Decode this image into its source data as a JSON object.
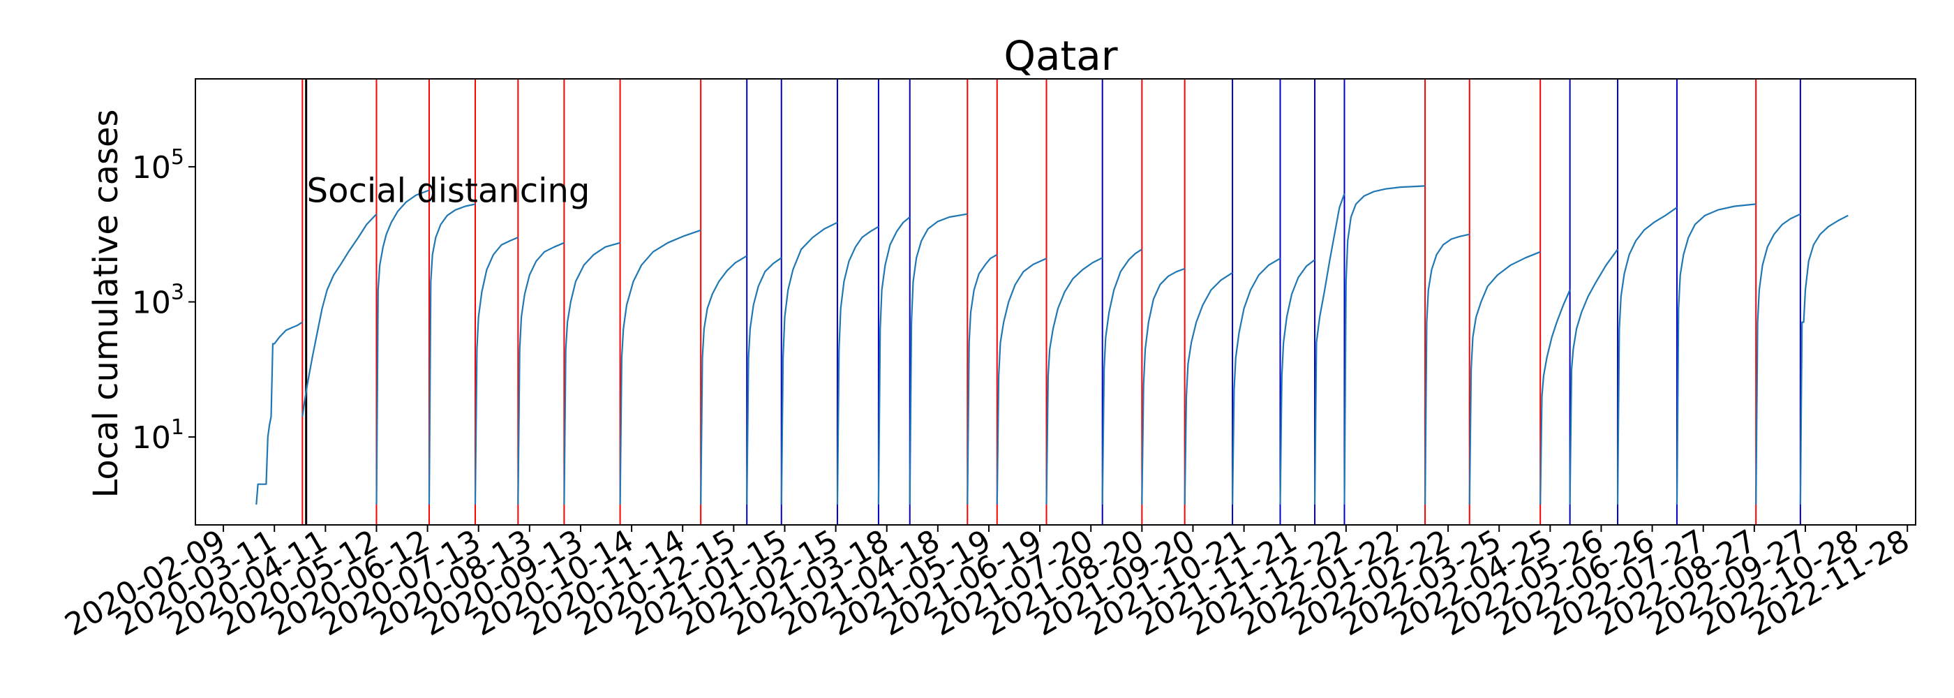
{
  "chart_data": {
    "type": "line",
    "title": "Qatar",
    "xlabel": "",
    "ylabel": "Local cumulative cases",
    "y_scale": "log",
    "ylim": [
      0.5,
      2000000
    ],
    "xlim": [
      "2020-01-23",
      "2022-12-03"
    ],
    "grid": false,
    "yticks": [
      {
        "value": 10,
        "base": "10",
        "exp": "1"
      },
      {
        "value": 1000,
        "base": "10",
        "exp": "3"
      },
      {
        "value": 100000,
        "base": "10",
        "exp": "5"
      }
    ],
    "xtick_labels": [
      "2020-02-09",
      "2020-03-11",
      "2020-04-11",
      "2020-05-12",
      "2020-06-12",
      "2020-07-13",
      "2020-08-13",
      "2020-09-13",
      "2020-10-14",
      "2020-11-14",
      "2020-12-15",
      "2021-01-15",
      "2021-02-15",
      "2021-03-18",
      "2021-04-18",
      "2021-05-19",
      "2021-06-19",
      "2021-07-20",
      "2021-08-20",
      "2021-09-20",
      "2021-10-21",
      "2021-11-21",
      "2021-12-22",
      "2022-01-22",
      "2022-02-22",
      "2022-03-25",
      "2022-04-25",
      "2022-05-26",
      "2022-06-26",
      "2022-07-27",
      "2022-08-27",
      "2022-09-27",
      "2022-10-28",
      "2022-11-28"
    ],
    "annotation": {
      "text": "Social distancing",
      "date": "2020-03-29",
      "value": 40000
    },
    "intervention_line": {
      "date": "2020-03-29",
      "color": "#000000"
    },
    "red_lines": [
      "2020-03-28",
      "2020-05-12",
      "2020-06-13",
      "2020-07-11",
      "2020-08-06",
      "2020-09-03",
      "2020-10-07",
      "2020-11-25",
      "2021-05-06",
      "2021-05-24",
      "2021-06-23",
      "2021-08-20",
      "2021-09-15",
      "2022-02-08",
      "2022-03-07",
      "2022-04-19",
      "2022-08-28"
    ],
    "blue_lines": [
      "2020-12-23",
      "2021-01-13",
      "2021-02-16",
      "2021-03-13",
      "2021-04-01",
      "2021-07-27",
      "2021-10-14",
      "2021-11-12",
      "2021-12-03",
      "2021-12-21",
      "2022-05-07",
      "2022-06-05",
      "2022-07-11",
      "2022-09-24"
    ],
    "series_color": "#1f77b4",
    "series": [
      {
        "x": [
          "2020-02-29",
          "2020-03-01",
          "2020-03-03",
          "2020-03-04",
          "2020-03-06",
          "2020-03-07",
          "2020-03-08",
          "2020-03-09",
          "2020-03-10",
          "2020-03-11",
          "2020-03-14",
          "2020-03-18",
          "2020-03-22",
          "2020-03-25",
          "2020-03-28"
        ],
        "values": [
          1,
          2,
          2,
          2,
          2,
          10,
          15,
          20,
          240,
          240,
          300,
          380,
          420,
          450,
          500
        ]
      },
      {
        "x": [
          "2020-03-28",
          "2020-03-29",
          "2020-03-31",
          "2020-04-03",
          "2020-04-06",
          "2020-04-09",
          "2020-04-12",
          "2020-04-16",
          "2020-04-20",
          "2020-04-25",
          "2020-05-01",
          "2020-05-06",
          "2020-05-12"
        ],
        "values": [
          20,
          30,
          60,
          150,
          350,
          800,
          1500,
          2500,
          3500,
          5500,
          9000,
          14000,
          20000
        ]
      },
      {
        "x": [
          "2020-05-12",
          "2020-05-13",
          "2020-05-14",
          "2020-05-16",
          "2020-05-18",
          "2020-05-21",
          "2020-05-25",
          "2020-05-30",
          "2020-06-05",
          "2020-06-13"
        ],
        "values": [
          1,
          1500,
          3500,
          6500,
          10000,
          15000,
          22000,
          30000,
          38000,
          45000
        ]
      },
      {
        "x": [
          "2020-06-13",
          "2020-06-14",
          "2020-06-15",
          "2020-06-17",
          "2020-06-20",
          "2020-06-24",
          "2020-06-29",
          "2020-07-05",
          "2020-07-11"
        ],
        "values": [
          1,
          2000,
          5000,
          9000,
          14000,
          19000,
          23000,
          26000,
          28000
        ]
      },
      {
        "x": [
          "2020-07-11",
          "2020-07-12",
          "2020-07-13",
          "2020-07-15",
          "2020-07-18",
          "2020-07-22",
          "2020-07-27",
          "2020-08-01",
          "2020-08-06"
        ],
        "values": [
          1,
          200,
          600,
          1400,
          3000,
          5000,
          7000,
          8000,
          9000
        ]
      },
      {
        "x": [
          "2020-08-06",
          "2020-08-07",
          "2020-08-08",
          "2020-08-10",
          "2020-08-13",
          "2020-08-17",
          "2020-08-22",
          "2020-08-28",
          "2020-09-03"
        ],
        "values": [
          1,
          200,
          600,
          1300,
          2500,
          4000,
          5500,
          6500,
          7500
        ]
      },
      {
        "x": [
          "2020-09-03",
          "2020-09-04",
          "2020-09-05",
          "2020-09-07",
          "2020-09-10",
          "2020-09-15",
          "2020-09-21",
          "2020-09-28",
          "2020-10-07"
        ],
        "values": [
          1,
          200,
          500,
          1000,
          2000,
          3500,
          5000,
          6500,
          7500
        ]
      },
      {
        "x": [
          "2020-10-07",
          "2020-10-08",
          "2020-10-09",
          "2020-10-11",
          "2020-10-15",
          "2020-10-20",
          "2020-10-27",
          "2020-11-05",
          "2020-11-15",
          "2020-11-25"
        ],
        "values": [
          1,
          150,
          400,
          900,
          2000,
          3500,
          5500,
          7500,
          9500,
          11500
        ]
      },
      {
        "x": [
          "2020-11-25",
          "2020-11-26",
          "2020-11-27",
          "2020-11-29",
          "2020-12-02",
          "2020-12-06",
          "2020-12-11",
          "2020-12-16",
          "2020-12-23"
        ],
        "values": [
          1,
          150,
          400,
          800,
          1300,
          2000,
          2900,
          3800,
          4800
        ]
      },
      {
        "x": [
          "2020-12-23",
          "2020-12-24",
          "2020-12-25",
          "2020-12-27",
          "2020-12-30",
          "2021-01-03",
          "2021-01-08",
          "2021-01-13"
        ],
        "values": [
          1,
          150,
          400,
          900,
          1700,
          2800,
          3700,
          4500
        ]
      },
      {
        "x": [
          "2021-01-13",
          "2021-01-14",
          "2021-01-15",
          "2021-01-17",
          "2021-01-20",
          "2021-01-25",
          "2021-02-01",
          "2021-02-08",
          "2021-02-16"
        ],
        "values": [
          1,
          150,
          600,
          1500,
          3000,
          6000,
          9000,
          12000,
          15000
        ]
      },
      {
        "x": [
          "2021-02-16",
          "2021-02-17",
          "2021-02-18",
          "2021-02-20",
          "2021-02-23",
          "2021-02-27",
          "2021-03-03",
          "2021-03-08",
          "2021-03-13"
        ],
        "values": [
          1,
          200,
          800,
          2000,
          4000,
          6500,
          9000,
          11000,
          13000
        ]
      },
      {
        "x": [
          "2021-03-13",
          "2021-03-14",
          "2021-03-15",
          "2021-03-17",
          "2021-03-20",
          "2021-03-24",
          "2021-03-28",
          "2021-04-01"
        ],
        "values": [
          1,
          400,
          1500,
          3500,
          7000,
          11000,
          15000,
          18000
        ]
      },
      {
        "x": [
          "2021-04-01",
          "2021-04-02",
          "2021-04-03",
          "2021-04-05",
          "2021-04-08",
          "2021-04-12",
          "2021-04-18",
          "2021-04-25",
          "2021-05-06"
        ],
        "values": [
          1,
          500,
          2000,
          4500,
          8000,
          12000,
          15500,
          18000,
          20000
        ]
      },
      {
        "x": [
          "2021-05-06",
          "2021-05-07",
          "2021-05-08",
          "2021-05-10",
          "2021-05-13",
          "2021-05-17",
          "2021-05-20",
          "2021-05-24"
        ],
        "values": [
          1,
          250,
          700,
          1500,
          2600,
          3600,
          4400,
          5000
        ]
      },
      {
        "x": [
          "2021-05-24",
          "2021-05-25",
          "2021-05-26",
          "2021-05-28",
          "2021-05-31",
          "2021-06-04",
          "2021-06-09",
          "2021-06-15",
          "2021-06-23"
        ],
        "values": [
          1,
          80,
          250,
          500,
          1000,
          1800,
          2800,
          3600,
          4400
        ]
      },
      {
        "x": [
          "2021-06-23",
          "2021-06-24",
          "2021-06-25",
          "2021-06-27",
          "2021-06-30",
          "2021-07-04",
          "2021-07-09",
          "2021-07-15",
          "2021-07-21",
          "2021-07-27"
        ],
        "values": [
          1,
          80,
          200,
          400,
          800,
          1400,
          2200,
          3000,
          3800,
          4500
        ]
      },
      {
        "x": [
          "2021-07-27",
          "2021-07-28",
          "2021-07-29",
          "2021-07-31",
          "2021-08-03",
          "2021-08-07",
          "2021-08-12",
          "2021-08-16",
          "2021-08-20"
        ],
        "values": [
          1,
          100,
          300,
          700,
          1500,
          2800,
          4200,
          5200,
          6000
        ]
      },
      {
        "x": [
          "2021-08-20",
          "2021-08-21",
          "2021-08-22",
          "2021-08-24",
          "2021-08-27",
          "2021-08-31",
          "2021-09-05",
          "2021-09-10",
          "2021-09-15"
        ],
        "values": [
          1,
          60,
          200,
          500,
          1100,
          1800,
          2400,
          2800,
          3100
        ]
      },
      {
        "x": [
          "2021-09-15",
          "2021-09-16",
          "2021-09-17",
          "2021-09-19",
          "2021-09-22",
          "2021-09-26",
          "2021-10-01",
          "2021-10-07",
          "2021-10-14"
        ],
        "values": [
          1,
          40,
          120,
          250,
          500,
          900,
          1500,
          2100,
          2700
        ]
      },
      {
        "x": [
          "2021-10-14",
          "2021-10-15",
          "2021-10-16",
          "2021-10-18",
          "2021-10-21",
          "2021-10-25",
          "2021-10-30",
          "2021-11-05",
          "2021-11-12"
        ],
        "values": [
          1,
          50,
          150,
          350,
          800,
          1500,
          2500,
          3500,
          4400
        ]
      },
      {
        "x": [
          "2021-11-12",
          "2021-11-13",
          "2021-11-14",
          "2021-11-16",
          "2021-11-19",
          "2021-11-23",
          "2021-11-28",
          "2021-12-03"
        ],
        "values": [
          1,
          80,
          250,
          600,
          1300,
          2300,
          3400,
          4200
        ]
      },
      {
        "x": [
          "2021-12-03",
          "2021-12-04",
          "2021-12-06",
          "2021-12-09",
          "2021-12-12",
          "2021-12-15",
          "2021-12-18",
          "2021-12-21"
        ],
        "values": [
          1,
          250,
          600,
          1500,
          4000,
          10000,
          25000,
          40000
        ]
      },
      {
        "x": [
          "2021-12-21",
          "2021-12-22",
          "2021-12-23",
          "2021-12-25",
          "2021-12-28",
          "2022-01-02",
          "2022-01-08",
          "2022-01-15",
          "2022-01-24",
          "2022-02-08"
        ],
        "values": [
          1,
          2000,
          8000,
          18000,
          28000,
          37000,
          43000,
          47000,
          50000,
          52000
        ]
      },
      {
        "x": [
          "2022-02-08",
          "2022-02-09",
          "2022-02-10",
          "2022-02-12",
          "2022-02-15",
          "2022-02-19",
          "2022-02-24",
          "2022-03-01",
          "2022-03-07"
        ],
        "values": [
          1,
          500,
          1500,
          3000,
          5000,
          7000,
          8500,
          9300,
          10000
        ]
      },
      {
        "x": [
          "2022-03-07",
          "2022-03-08",
          "2022-03-09",
          "2022-03-11",
          "2022-03-14",
          "2022-03-18",
          "2022-03-24",
          "2022-04-01",
          "2022-04-10",
          "2022-04-19"
        ],
        "values": [
          1,
          100,
          300,
          600,
          1000,
          1700,
          2500,
          3500,
          4500,
          5500
        ]
      },
      {
        "x": [
          "2022-04-19",
          "2022-04-20",
          "2022-04-21",
          "2022-04-23",
          "2022-04-26",
          "2022-04-29",
          "2022-05-03",
          "2022-05-07"
        ],
        "values": [
          1,
          40,
          80,
          150,
          300,
          500,
          900,
          1500
        ]
      },
      {
        "x": [
          "2022-05-07",
          "2022-05-08",
          "2022-05-09",
          "2022-05-11",
          "2022-05-14",
          "2022-05-18",
          "2022-05-23",
          "2022-05-29",
          "2022-06-05"
        ],
        "values": [
          1,
          100,
          200,
          400,
          700,
          1200,
          2000,
          3500,
          6000
        ]
      },
      {
        "x": [
          "2022-06-05",
          "2022-06-06",
          "2022-06-07",
          "2022-06-09",
          "2022-06-12",
          "2022-06-16",
          "2022-06-21",
          "2022-06-27",
          "2022-07-04",
          "2022-07-11"
        ],
        "values": [
          1,
          400,
          1200,
          2600,
          5000,
          8000,
          11500,
          15000,
          19000,
          25000
        ]
      },
      {
        "x": [
          "2022-07-11",
          "2022-07-12",
          "2022-07-13",
          "2022-07-15",
          "2022-07-18",
          "2022-07-22",
          "2022-07-28",
          "2022-08-05",
          "2022-08-15",
          "2022-08-28"
        ],
        "values": [
          1,
          800,
          2500,
          5000,
          9000,
          14000,
          19000,
          23000,
          26000,
          28000
        ]
      },
      {
        "x": [
          "2022-08-28",
          "2022-08-29",
          "2022-08-30",
          "2022-09-01",
          "2022-09-04",
          "2022-09-08",
          "2022-09-13",
          "2022-09-18",
          "2022-09-24"
        ],
        "values": [
          1,
          500,
          1500,
          3500,
          6500,
          10000,
          14000,
          17000,
          20000
        ]
      },
      {
        "x": [
          "2022-09-24",
          "2022-09-25",
          "2022-09-26",
          "2022-09-27",
          "2022-09-29",
          "2022-10-02",
          "2022-10-06",
          "2022-10-11",
          "2022-10-17",
          "2022-10-23"
        ],
        "values": [
          1,
          500,
          500,
          1500,
          4000,
          7000,
          10000,
          13000,
          16000,
          19000
        ]
      }
    ]
  }
}
